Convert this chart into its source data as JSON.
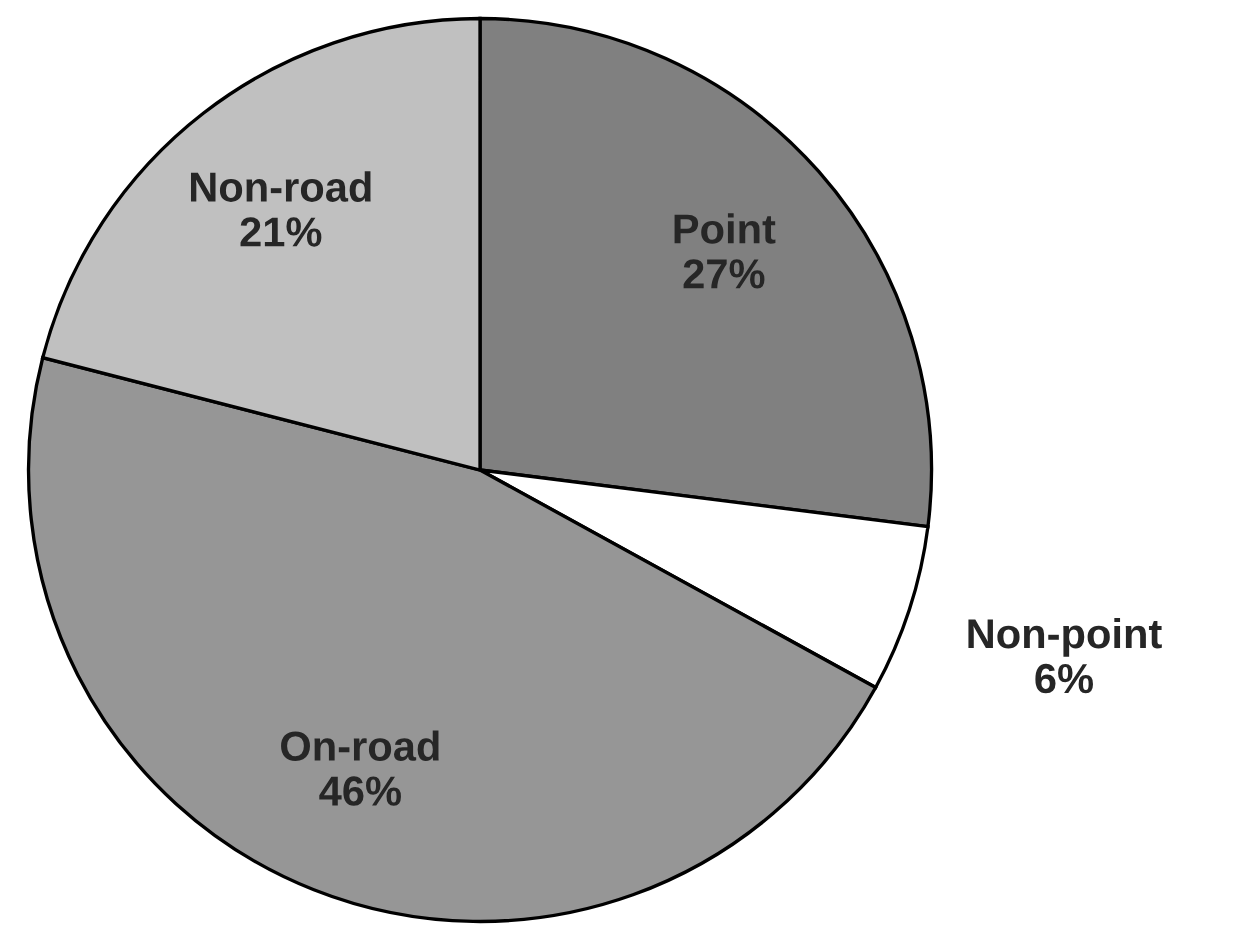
{
  "chart_data": {
    "type": "pie",
    "categories": [
      "Point",
      "Non-point",
      "On-road",
      "Non-road"
    ],
    "values": [
      27,
      6,
      46,
      21
    ],
    "value_labels": [
      "27%",
      "6%",
      "46%",
      "21%"
    ],
    "colors": [
      "#808080",
      "#ffffff",
      "#969696",
      "#c0c0c0"
    ]
  }
}
